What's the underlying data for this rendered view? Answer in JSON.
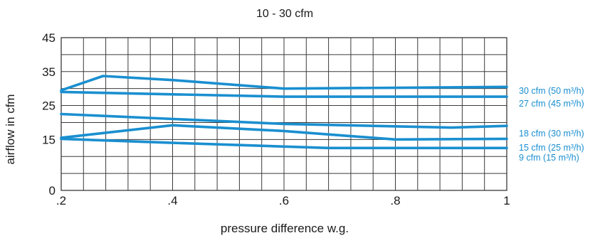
{
  "chart_data": {
    "type": "line",
    "title": "10 - 30 cfm",
    "xlabel": "pressure difference w.g.",
    "ylabel": "airflow in cfm",
    "xlim": [
      0.2,
      1.0
    ],
    "ylim": [
      0,
      45
    ],
    "x_ticks": [
      {
        "value": 0.2,
        "label": ".2"
      },
      {
        "value": 0.4,
        "label": ".4"
      },
      {
        "value": 0.6,
        "label": ".6"
      },
      {
        "value": 0.8,
        "label": ".8"
      },
      {
        "value": 1.0,
        "label": "1"
      }
    ],
    "y_ticks": [
      {
        "value": 0,
        "label": "0"
      },
      {
        "value": 15,
        "label": "15"
      },
      {
        "value": 25,
        "label": "25"
      },
      {
        "value": 35,
        "label": "35"
      },
      {
        "value": 45,
        "label": "45"
      }
    ],
    "grid": true,
    "legend": "inline labels at right end of each line",
    "colors": {
      "series": "#1a8fd0",
      "grid": "#3a3a3a"
    },
    "series": [
      {
        "name": "30 cfm (50 m³/h)",
        "x": [
          0.2,
          0.275,
          0.4,
          0.6,
          1.0
        ],
        "y": [
          29.5,
          33.7,
          32.5,
          30,
          30.5
        ]
      },
      {
        "name": "27 cfm (45 m³/h)",
        "x": [
          0.2,
          0.6,
          1.0
        ],
        "y": [
          29,
          27.6,
          27.6
        ]
      },
      {
        "name": "18 cfm (30 m³/h)",
        "x": [
          0.2,
          0.6,
          0.9,
          1.0
        ],
        "y": [
          22.5,
          19.6,
          18.5,
          19
        ]
      },
      {
        "name": "15 cfm (25 m³/h)",
        "x": [
          0.2,
          0.4,
          0.6,
          0.8,
          1.0
        ],
        "y": [
          15.5,
          19.2,
          17.5,
          15,
          15.2
        ]
      },
      {
        "name": "9 cfm (15 m³/h)",
        "x": [
          0.2,
          0.4,
          0.68,
          1.0
        ],
        "y": [
          15.2,
          14,
          12.5,
          12.5
        ]
      }
    ]
  }
}
